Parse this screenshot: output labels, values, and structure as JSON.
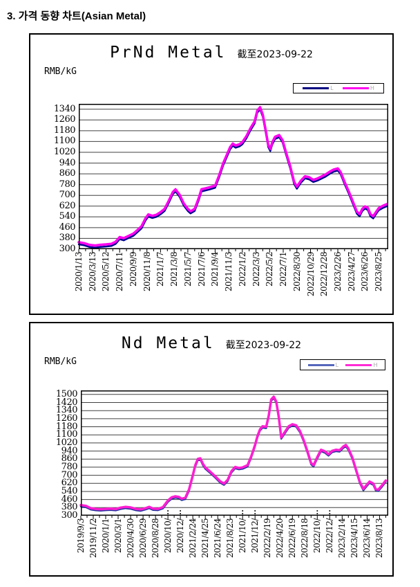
{
  "page": {
    "heading": "3.  가격 동향 차트(Asian Metal)"
  },
  "chart_data": [
    {
      "type": "line",
      "title": "PrNd Metal",
      "as_of_label": "截至2023-09-22",
      "unit_label": "RMB/kG",
      "grid": "horizontal",
      "legend_position": "top-right",
      "legend": [
        {
          "name": "L",
          "color": "#000080"
        },
        {
          "name": "H",
          "color": "#ff00f0"
        }
      ],
      "ylim": [
        300,
        1380
      ],
      "yticks": [
        300,
        380,
        460,
        540,
        620,
        700,
        780,
        860,
        940,
        1020,
        1100,
        1180,
        1260,
        1340
      ],
      "x_tick_labels": [
        "2020/1/13",
        "2020/3/13",
        "2020/5/12",
        "2020/7/11",
        "2020/9/9",
        "2020/11/8",
        "2021/1/7",
        "2021/3/8",
        "2021/5/7",
        "2021/7/6",
        "2021/9/4",
        "2021/11/3",
        "2022/1/2",
        "2022/3/3",
        "2022/5/2",
        "2022/7/1",
        "2022/8/30",
        "2022/10/29",
        "2022/12/28",
        "2023/2/26",
        "2023/4/27",
        "2023/6/26",
        "2023/8/25"
      ],
      "series": [
        {
          "name": "L",
          "color": "#000090",
          "width": 2.5,
          "derive": {
            "from": "H",
            "offset": -16
          }
        },
        {
          "name": "H",
          "color": "#ff00f0",
          "width": 3.5,
          "points": [
            [
              0,
              352
            ],
            [
              0.4,
              345
            ],
            [
              0.8,
              332
            ],
            [
              1.2,
              328
            ],
            [
              1.6,
              333
            ],
            [
              2,
              336
            ],
            [
              2.4,
              340
            ],
            [
              2.7,
              355
            ],
            [
              3,
              390
            ],
            [
              3.3,
              382
            ],
            [
              3.6,
              396
            ],
            [
              4,
              415
            ],
            [
              4.3,
              442
            ],
            [
              4.6,
              470
            ],
            [
              4.9,
              530
            ],
            [
              5.1,
              558
            ],
            [
              5.4,
              548
            ],
            [
              5.7,
              556
            ],
            [
              6,
              575
            ],
            [
              6.3,
              600
            ],
            [
              6.6,
              660
            ],
            [
              6.9,
              725
            ],
            [
              7.1,
              745
            ],
            [
              7.4,
              705
            ],
            [
              7.7,
              640
            ],
            [
              8,
              600
            ],
            [
              8.2,
              582
            ],
            [
              8.5,
              600
            ],
            [
              8.8,
              680
            ],
            [
              9,
              745
            ],
            [
              9.3,
              752
            ],
            [
              9.6,
              760
            ],
            [
              10,
              772
            ],
            [
              10.3,
              850
            ],
            [
              10.6,
              940
            ],
            [
              10.9,
              1010
            ],
            [
              11.1,
              1058
            ],
            [
              11.3,
              1085
            ],
            [
              11.5,
              1070
            ],
            [
              11.8,
              1080
            ],
            [
              12,
              1095
            ],
            [
              12.3,
              1140
            ],
            [
              12.6,
              1200
            ],
            [
              12.9,
              1250
            ],
            [
              13.1,
              1330
            ],
            [
              13.3,
              1355
            ],
            [
              13.5,
              1300
            ],
            [
              13.7,
              1190
            ],
            [
              13.9,
              1075
            ],
            [
              14.05,
              1045
            ],
            [
              14.2,
              1095
            ],
            [
              14.4,
              1135
            ],
            [
              14.7,
              1148
            ],
            [
              14.95,
              1110
            ],
            [
              15.2,
              1020
            ],
            [
              15.5,
              920
            ],
            [
              15.8,
              800
            ],
            [
              16,
              765
            ],
            [
              16.3,
              810
            ],
            [
              16.6,
              842
            ],
            [
              16.9,
              835
            ],
            [
              17.2,
              815
            ],
            [
              17.5,
              825
            ],
            [
              17.8,
              840
            ],
            [
              18.1,
              855
            ],
            [
              18.4,
              875
            ],
            [
              18.7,
              892
            ],
            [
              19,
              900
            ],
            [
              19.2,
              875
            ],
            [
              19.5,
              800
            ],
            [
              19.8,
              730
            ],
            [
              20.1,
              655
            ],
            [
              20.4,
              580
            ],
            [
              20.6,
              560
            ],
            [
              20.8,
              600
            ],
            [
              21,
              618
            ],
            [
              21.2,
              608
            ],
            [
              21.4,
              560
            ],
            [
              21.6,
              545
            ],
            [
              21.8,
              575
            ],
            [
              22,
              605
            ],
            [
              22.3,
              622
            ],
            [
              22.6,
              635
            ]
          ]
        }
      ]
    },
    {
      "type": "line",
      "title": "Nd Metal",
      "as_of_label": "截至2023-09-22",
      "unit_label": "RMB/kG",
      "grid": "horizontal",
      "legend_position": "top-right",
      "legend": [
        {
          "name": "L",
          "color": "#5566bb"
        },
        {
          "name": "H",
          "color": "#ff2bd5"
        }
      ],
      "ylim": [
        300,
        1540
      ],
      "yticks": [
        300,
        380,
        460,
        540,
        620,
        700,
        780,
        860,
        940,
        1020,
        1100,
        1180,
        1260,
        1340,
        1420,
        1500
      ],
      "x_tick_labels": [
        "2019/9/3",
        "2019/11/2",
        "2020/1/1",
        "2020/3/1",
        "2020/4/30",
        "2020/6/29",
        "2020/8/28",
        "2020/10/",
        "2020/12/",
        "2021/2/24",
        "2021/4/25",
        "2021/6/24",
        "2021/8/23",
        "2021/10/",
        "2021/12/",
        "2022/2/19",
        "2022/4/20",
        "2022/6/19",
        "2022/8/18",
        "2022/10/",
        "2022/12/",
        "2023/2/14",
        "2023/4/15",
        "2023/6/14",
        "2023/8/13"
      ],
      "series": [
        {
          "name": "L",
          "color": "#2233a0",
          "width": 2.5,
          "derive": {
            "from": "H",
            "offset": -14
          }
        },
        {
          "name": "H",
          "color": "#ff1ed2",
          "width": 3.5,
          "points": [
            [
              0,
              405
            ],
            [
              0.4,
              398
            ],
            [
              0.8,
              375
            ],
            [
              1.2,
              367
            ],
            [
              1.6,
              364
            ],
            [
              2,
              368
            ],
            [
              2.4,
              370
            ],
            [
              2.8,
              366
            ],
            [
              3.2,
              380
            ],
            [
              3.6,
              388
            ],
            [
              4,
              382
            ],
            [
              4.4,
              368
            ],
            [
              4.8,
              362
            ],
            [
              5.2,
              375
            ],
            [
              5.5,
              388
            ],
            [
              5.8,
              370
            ],
            [
              6.2,
              368
            ],
            [
              6.6,
              385
            ],
            [
              7,
              450
            ],
            [
              7.3,
              482
            ],
            [
              7.6,
              492
            ],
            [
              7.9,
              485
            ],
            [
              8.1,
              468
            ],
            [
              8.4,
              478
            ],
            [
              8.7,
              560
            ],
            [
              9,
              700
            ],
            [
              9.2,
              800
            ],
            [
              9.4,
              862
            ],
            [
              9.6,
              868
            ],
            [
              9.8,
              815
            ],
            [
              10,
              778
            ],
            [
              10.4,
              735
            ],
            [
              10.8,
              690
            ],
            [
              11.2,
              640
            ],
            [
              11.5,
              618
            ],
            [
              11.8,
              655
            ],
            [
              12.1,
              740
            ],
            [
              12.4,
              782
            ],
            [
              12.7,
              772
            ],
            [
              13,
              778
            ],
            [
              13.4,
              800
            ],
            [
              13.7,
              890
            ],
            [
              14,
              1000
            ],
            [
              14.2,
              1090
            ],
            [
              14.4,
              1155
            ],
            [
              14.6,
              1185
            ],
            [
              14.9,
              1180
            ],
            [
              15.1,
              1290
            ],
            [
              15.3,
              1450
            ],
            [
              15.5,
              1478
            ],
            [
              15.7,
              1430
            ],
            [
              15.9,
              1280
            ],
            [
              16.1,
              1075
            ],
            [
              16.4,
              1130
            ],
            [
              16.7,
              1185
            ],
            [
              17,
              1205
            ],
            [
              17.3,
              1195
            ],
            [
              17.6,
              1140
            ],
            [
              17.9,
              1050
            ],
            [
              18.2,
              940
            ],
            [
              18.5,
              822
            ],
            [
              18.7,
              800
            ],
            [
              19,
              880
            ],
            [
              19.3,
              952
            ],
            [
              19.6,
              938
            ],
            [
              19.9,
              908
            ],
            [
              20.2,
              942
            ],
            [
              20.5,
              952
            ],
            [
              20.8,
              948
            ],
            [
              21.1,
              985
            ],
            [
              21.3,
              1000
            ],
            [
              21.5,
              965
            ],
            [
              21.8,
              880
            ],
            [
              22.1,
              760
            ],
            [
              22.4,
              640
            ],
            [
              22.7,
              565
            ],
            [
              23,
              610
            ],
            [
              23.2,
              638
            ],
            [
              23.5,
              618
            ],
            [
              23.7,
              562
            ],
            [
              23.9,
              558
            ],
            [
              24.2,
              600
            ],
            [
              24.5,
              648
            ]
          ]
        }
      ]
    }
  ]
}
